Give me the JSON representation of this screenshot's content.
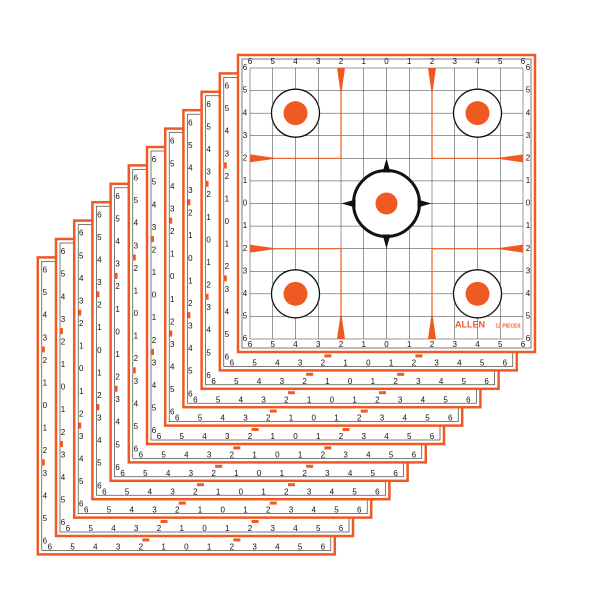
{
  "scale_labels": [
    "6",
    "5",
    "4",
    "3",
    "2",
    "1",
    "0",
    "1",
    "2",
    "3",
    "4",
    "5",
    "6"
  ],
  "brand": "ALLEN",
  "pack_count": "12 PIECES"
}
